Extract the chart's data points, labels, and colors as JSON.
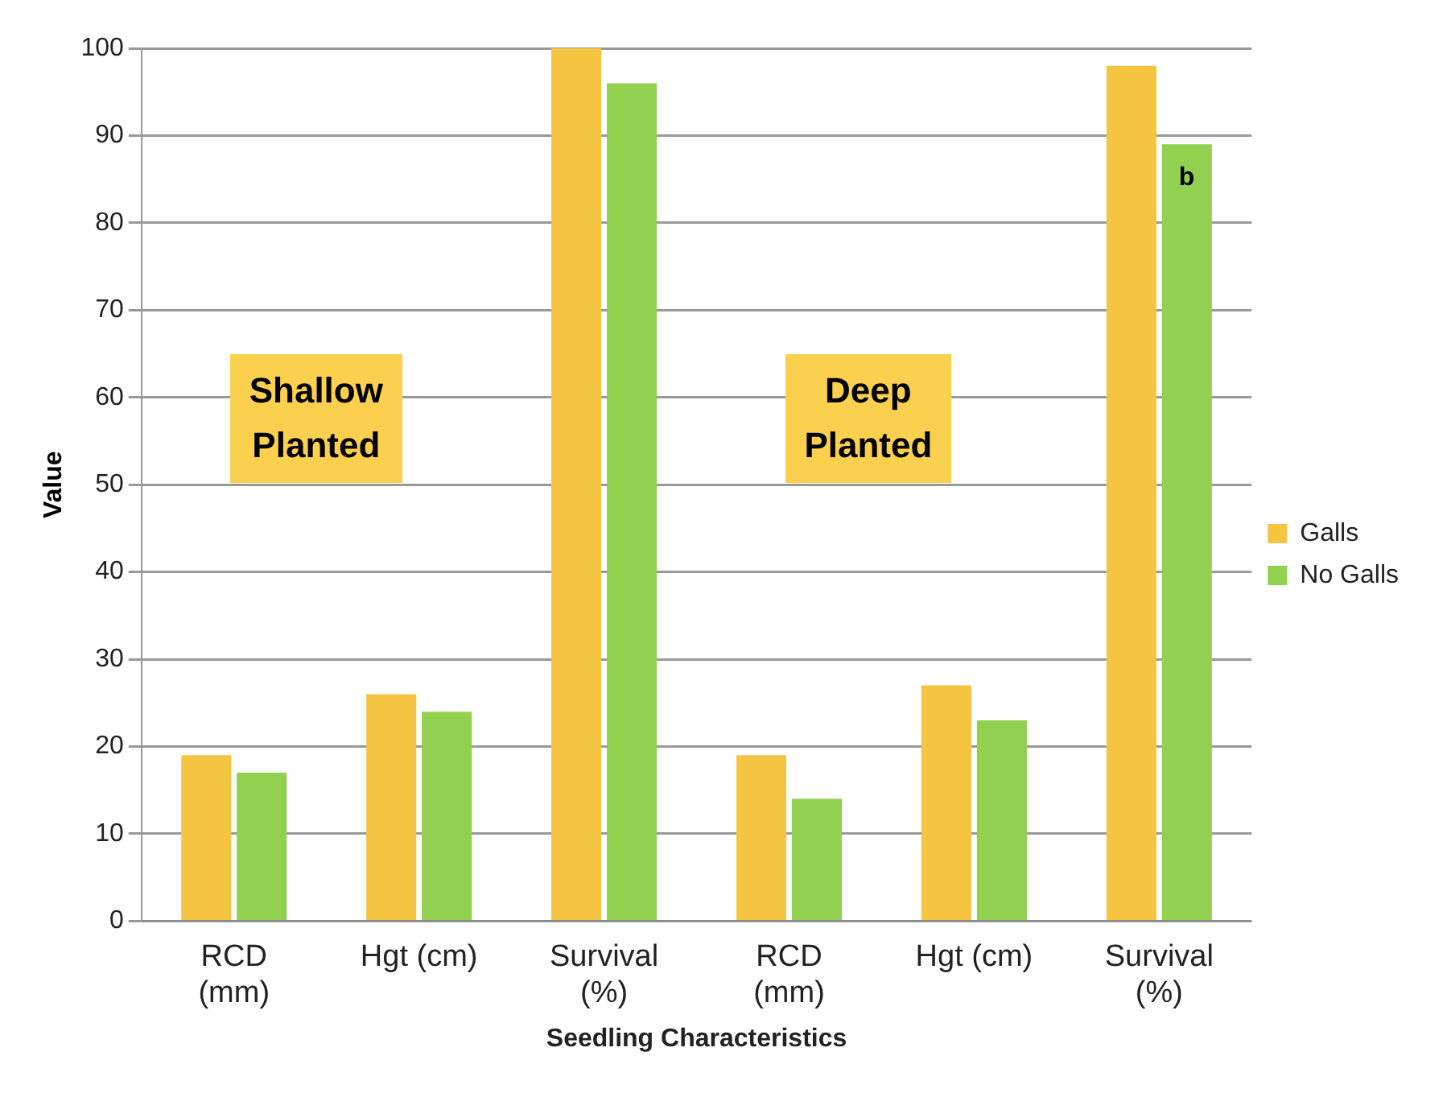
{
  "chart_data": {
    "type": "bar",
    "xlabel": "Seedling Characteristics",
    "ylabel": "Value",
    "categories": [
      "RCD\n(mm)",
      "Hgt (cm)",
      "Survival\n(%)",
      "RCD\n(mm)",
      "Hgt (cm)",
      "Survival\n(%)"
    ],
    "series": [
      {
        "name": "Galls",
        "color": "#f5c542",
        "values": [
          19,
          26,
          100,
          19,
          27,
          98
        ]
      },
      {
        "name": "No Galls",
        "color": "#92d050",
        "values": [
          17,
          24,
          96,
          14,
          23,
          89
        ]
      }
    ],
    "ylim": [
      0,
      100
    ],
    "yticks": [
      0,
      10,
      20,
      30,
      40,
      50,
      60,
      70,
      80,
      90,
      100
    ],
    "grid": "y",
    "legend": "right",
    "annotations": [
      "Shallow\nPlanted",
      "Deep\nPlanted",
      "b"
    ]
  }
}
